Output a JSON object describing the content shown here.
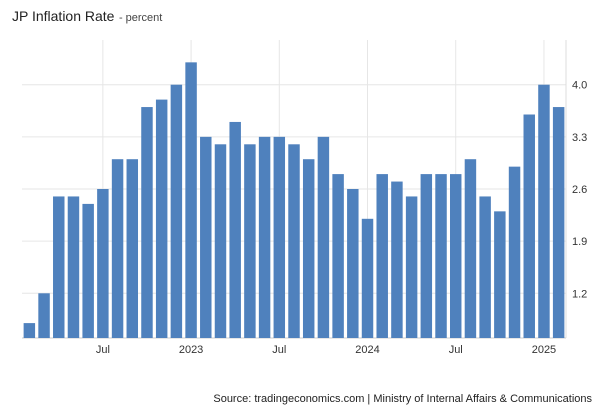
{
  "chart_data": {
    "type": "bar",
    "title": "JP Inflation Rate",
    "subtitle": "- percent",
    "series": [
      {
        "values": [
          0.8,
          1.2,
          2.5,
          2.5,
          2.4,
          2.6,
          3.0,
          3.0,
          3.7,
          3.8,
          4.0,
          4.3,
          3.3,
          3.2,
          3.5,
          3.2,
          3.3,
          3.3,
          3.2,
          3.0,
          3.3,
          2.8,
          2.6,
          2.2,
          2.8,
          2.7,
          2.5,
          2.8,
          2.8,
          2.8,
          3.0,
          2.5,
          2.3,
          2.9,
          3.6,
          4.0,
          3.7
        ]
      }
    ],
    "x_tick_labels": [
      {
        "label": "Jul",
        "index": 5.5
      },
      {
        "label": "2023",
        "index": 11.5
      },
      {
        "label": "Jul",
        "index": 17.5
      },
      {
        "label": "2024",
        "index": 23.5
      },
      {
        "label": "Jul",
        "index": 29.5
      },
      {
        "label": "2025",
        "index": 35.5
      }
    ],
    "y_ticks": [
      1.2,
      1.9,
      2.6,
      3.3,
      4.0
    ],
    "y_tick_labels": [
      "1.2",
      "1.9",
      "2.6",
      "3.3",
      "4.0"
    ],
    "ylim": [
      0.6,
      4.6
    ],
    "grid": true,
    "y_axis_side": "right",
    "bar_color": "#4f81bd"
  },
  "source": "Source: tradingeconomics.com | Ministry of Internal Affairs & Communications"
}
